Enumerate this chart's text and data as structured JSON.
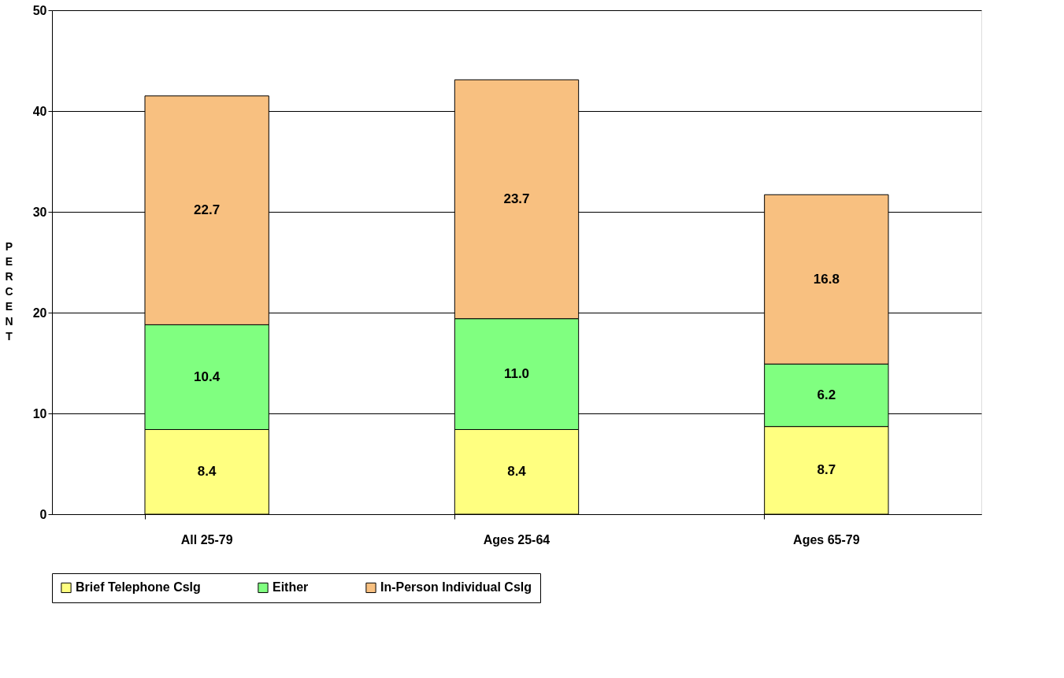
{
  "chart_data": {
    "type": "bar",
    "stacked": true,
    "ylabel": "PERCENT",
    "categories": [
      "All 25-79",
      "Ages 25-64",
      "Ages 65-79"
    ],
    "series": [
      {
        "name": "Brief Telephone Cslg",
        "color": "#ffff80",
        "values": [
          8.4,
          8.4,
          8.7
        ],
        "value_labels": [
          "8.4",
          "8.4",
          "8.7"
        ]
      },
      {
        "name": "Either",
        "color": "#80ff80",
        "values": [
          10.4,
          11.0,
          6.2
        ],
        "value_labels": [
          "10.4",
          "11.0",
          "6.2"
        ]
      },
      {
        "name": "In-Person Individual Cslg",
        "color": "#f8c080",
        "values": [
          22.7,
          23.7,
          16.8
        ],
        "value_labels": [
          "22.7",
          "23.7",
          "16.8"
        ]
      }
    ],
    "ylim": [
      0,
      50
    ],
    "yticks": [
      0,
      10,
      20,
      30,
      40,
      50
    ],
    "grid": "y",
    "legend": "bottom"
  }
}
